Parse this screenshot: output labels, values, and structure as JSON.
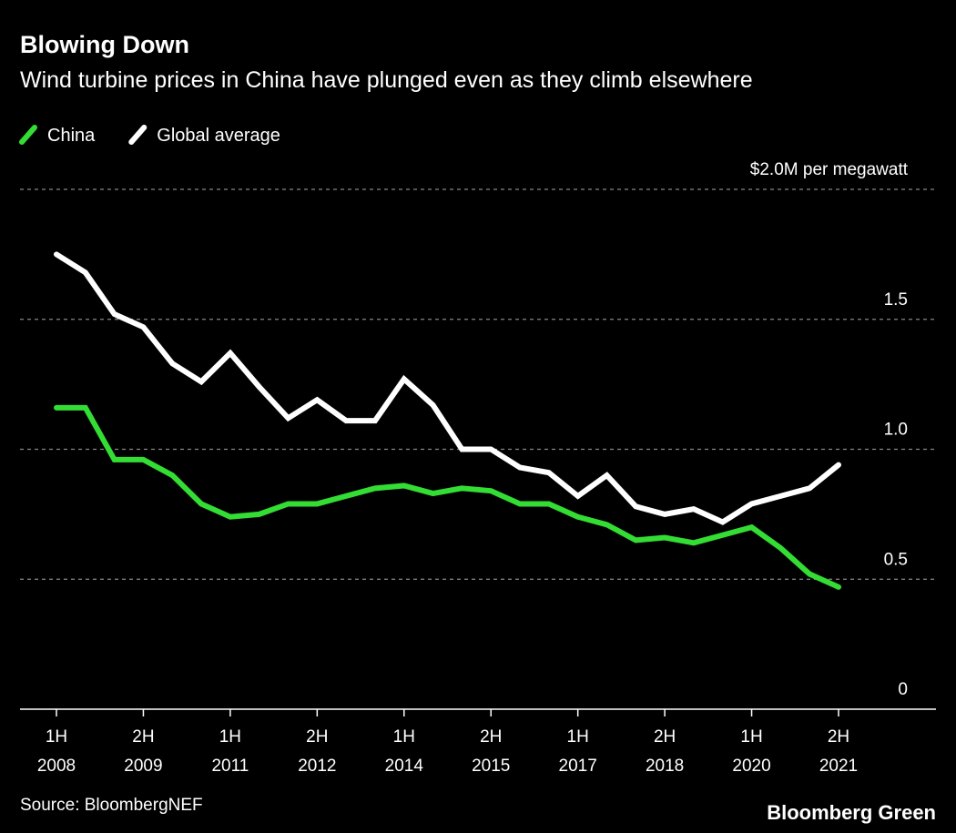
{
  "chart_data": {
    "type": "line",
    "title": "Blowing Down",
    "subtitle": "Wind turbine prices in China have plunged even as they climb elsewhere",
    "categories": [
      "1H 2008",
      null,
      null,
      "2H 2009",
      null,
      null,
      "1H 2011",
      null,
      null,
      "2H 2012",
      null,
      null,
      "1H 2014",
      null,
      null,
      "2H 2015",
      null,
      null,
      "1H 2017",
      null,
      null,
      "2H 2018",
      null,
      null,
      "1H 2020",
      null,
      null,
      "2H 2021"
    ],
    "series": [
      {
        "name": "China",
        "color": "#33dd33",
        "values": [
          1.16,
          1.16,
          0.96,
          0.96,
          0.9,
          0.79,
          0.74,
          0.75,
          0.79,
          0.79,
          0.82,
          0.85,
          0.86,
          0.83,
          0.85,
          0.84,
          0.79,
          0.79,
          0.74,
          0.71,
          0.65,
          0.66,
          0.64,
          0.67,
          0.7,
          0.62,
          0.52,
          0.47
        ]
      },
      {
        "name": "Global average",
        "color": "#ffffff",
        "values": [
          1.75,
          1.68,
          1.52,
          1.47,
          1.33,
          1.26,
          1.37,
          1.24,
          1.12,
          1.19,
          1.11,
          1.11,
          1.27,
          1.17,
          1.0,
          1.0,
          0.93,
          0.91,
          0.82,
          0.9,
          0.78,
          0.75,
          0.77,
          0.72,
          0.79,
          0.82,
          0.85,
          0.94
        ]
      }
    ],
    "ylim": [
      0,
      2
    ],
    "yticks": [
      0,
      0.5,
      {
        "value": 1,
        "label": "1.0"
      },
      1.5,
      {
        "value": 2,
        "label": "$2.0M per megawatt"
      }
    ],
    "grid": true,
    "source": "Source: BloombergNEF",
    "credit": "Bloomberg Green"
  }
}
